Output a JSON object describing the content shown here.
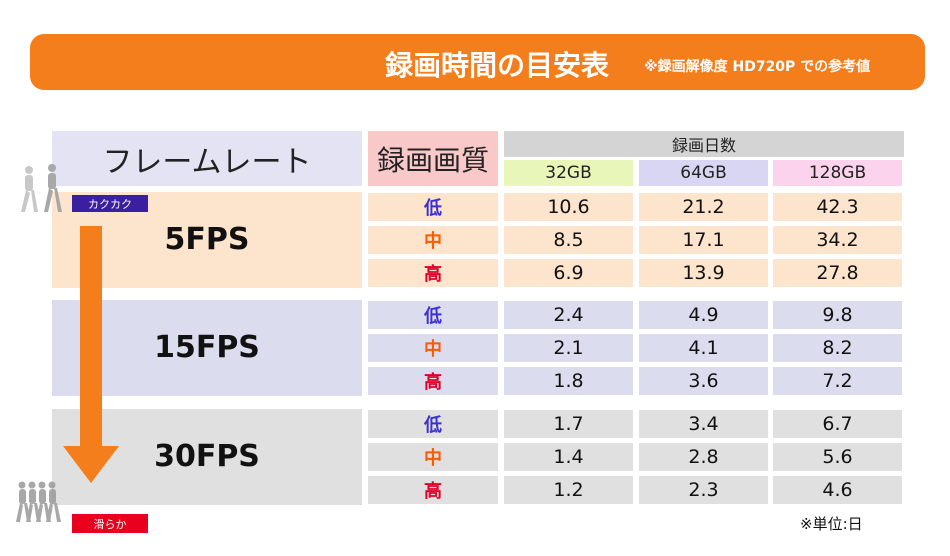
{
  "banner": {
    "title": "録画時間の目安表",
    "note": "※録画解像度 HD720P での参考値"
  },
  "table": {
    "header_framerate": "フレームレート",
    "header_quality": "録画画質",
    "header_days": "録画日数",
    "capacities": [
      "32GB",
      "64GB",
      "128GB"
    ],
    "groups": [
      {
        "fps": "5FPS",
        "bg": "#fde4cc",
        "rows": [
          {
            "quality": "低",
            "values": [
              "10.6",
              "21.2",
              "42.3"
            ]
          },
          {
            "quality": "中",
            "values": [
              "8.5",
              "17.1",
              "34.2"
            ]
          },
          {
            "quality": "高",
            "values": [
              "6.9",
              "13.9",
              "27.8"
            ]
          }
        ]
      },
      {
        "fps": "15FPS",
        "bg": "#dcdcef",
        "rows": [
          {
            "quality": "低",
            "values": [
              "2.4",
              "4.9",
              "9.8"
            ]
          },
          {
            "quality": "中",
            "values": [
              "2.1",
              "4.1",
              "8.2"
            ]
          },
          {
            "quality": "高",
            "values": [
              "1.8",
              "3.6",
              "7.2"
            ]
          }
        ]
      },
      {
        "fps": "30FPS",
        "bg": "#e0e0e0",
        "rows": [
          {
            "quality": "低",
            "values": [
              "1.7",
              "3.4",
              "6.7"
            ]
          },
          {
            "quality": "中",
            "values": [
              "1.4",
              "2.8",
              "5.6"
            ]
          },
          {
            "quality": "高",
            "values": [
              "1.2",
              "2.3",
              "4.6"
            ]
          }
        ]
      }
    ]
  },
  "colors": {
    "low": "#3b2fd6",
    "mid": "#ff5a00",
    "high": "#e0002a",
    "arrow": "#f47d1c"
  },
  "side": {
    "top_label": "カクカク",
    "bottom_label": "滑らか"
  },
  "unit_note": "※単位:日"
}
